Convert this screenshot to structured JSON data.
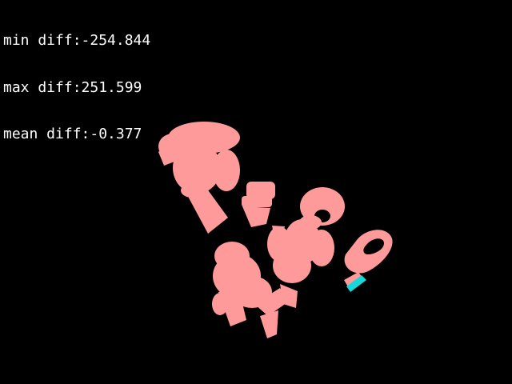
{
  "stats": {
    "min_line": "min diff:-254.844",
    "max_line": "max diff:251.599",
    "mean_line": "mean diff:-0.377"
  },
  "colors": {
    "background": "#000000",
    "text": "#ffffff",
    "positive_diff": "#ff9a9a",
    "negative_diff": "#17d8d8"
  }
}
